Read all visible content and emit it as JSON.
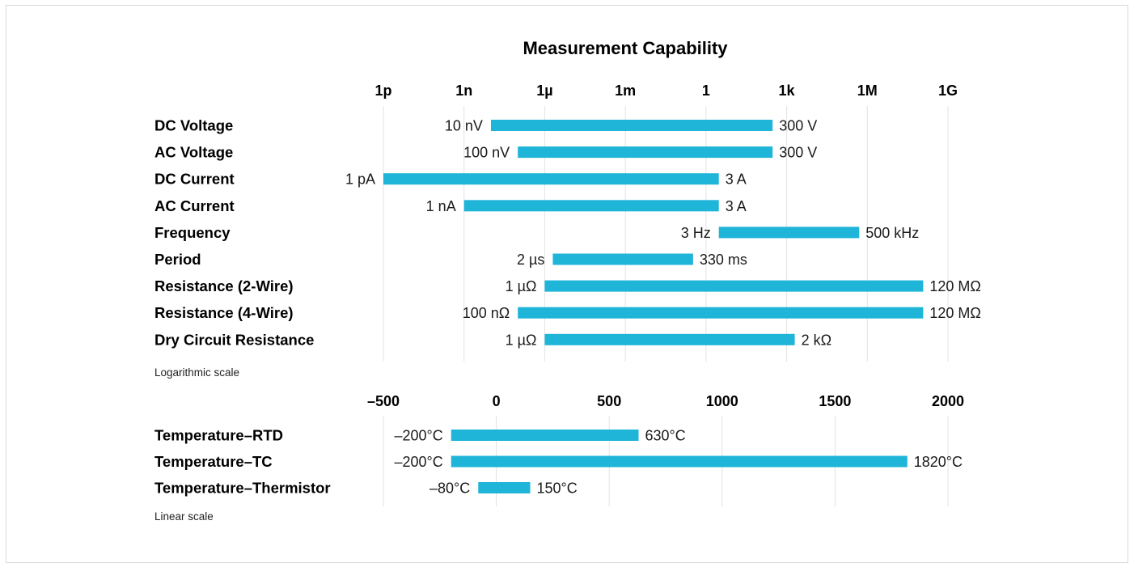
{
  "chart_data": {
    "type": "bar",
    "title": "Measurement Capability",
    "colors": {
      "bar": "#1eb5d8",
      "grid": "#e3e3e3",
      "border": "#d9d9d9"
    },
    "grid": true,
    "panels": [
      {
        "name": "logarithmic",
        "scale": "log",
        "scale_note": "Logarithmic scale",
        "tick_labels": [
          "1p",
          "1n",
          "1µ",
          "1m",
          "1",
          "1k",
          "1M",
          "1G"
        ],
        "tick_values": [
          1e-12,
          1e-09,
          1e-06,
          0.001,
          1,
          1000.0,
          1000000.0,
          1000000000.0
        ],
        "xlim": [
          1e-12,
          1000000000.0
        ],
        "rows": [
          {
            "label": "DC Voltage",
            "min": 1e-08,
            "max": 300,
            "min_label": "10 nV",
            "max_label": "300 V"
          },
          {
            "label": "AC Voltage",
            "min": 1e-07,
            "max": 300,
            "min_label": "100 nV",
            "max_label": "300 V"
          },
          {
            "label": "DC Current",
            "min": 1e-12,
            "max": 3,
            "min_label": "1 pA",
            "max_label": "3 A"
          },
          {
            "label": "AC Current",
            "min": 1e-09,
            "max": 3,
            "min_label": "1 nA",
            "max_label": "3 A"
          },
          {
            "label": "Frequency",
            "min": 3,
            "max": 500000,
            "min_label": "3 Hz",
            "max_label": "500 kHz"
          },
          {
            "label": "Period",
            "min": 2e-06,
            "max": 0.33,
            "min_label": "2 µs",
            "max_label": "330 ms"
          },
          {
            "label": "Resistance (2-Wire)",
            "min": 1e-06,
            "max": 120000000.0,
            "min_label": "1 µΩ",
            "max_label": "120 MΩ"
          },
          {
            "label": "Resistance (4-Wire)",
            "min": 1e-07,
            "max": 120000000.0,
            "min_label": "100 nΩ",
            "max_label": "120 MΩ"
          },
          {
            "label": "Dry Circuit Resistance",
            "min": 1e-06,
            "max": 2000,
            "min_label": "1 µΩ",
            "max_label": "2 kΩ"
          }
        ]
      },
      {
        "name": "linear",
        "scale": "linear",
        "scale_note": "Linear scale",
        "tick_labels": [
          "–500",
          "0",
          "500",
          "1000",
          "1500",
          "2000"
        ],
        "tick_values": [
          -500,
          0,
          500,
          1000,
          1500,
          2000
        ],
        "xlim": [
          -500,
          2000
        ],
        "rows": [
          {
            "label": "Temperature–RTD",
            "min": -200,
            "max": 630,
            "min_label": "–200°C",
            "max_label": "630°C"
          },
          {
            "label": "Temperature–TC",
            "min": -200,
            "max": 1820,
            "min_label": "–200°C",
            "max_label": "1820°C"
          },
          {
            "label": "Temperature–Thermistor",
            "min": -80,
            "max": 150,
            "min_label": "–80°C",
            "max_label": "150°C"
          }
        ]
      }
    ]
  }
}
